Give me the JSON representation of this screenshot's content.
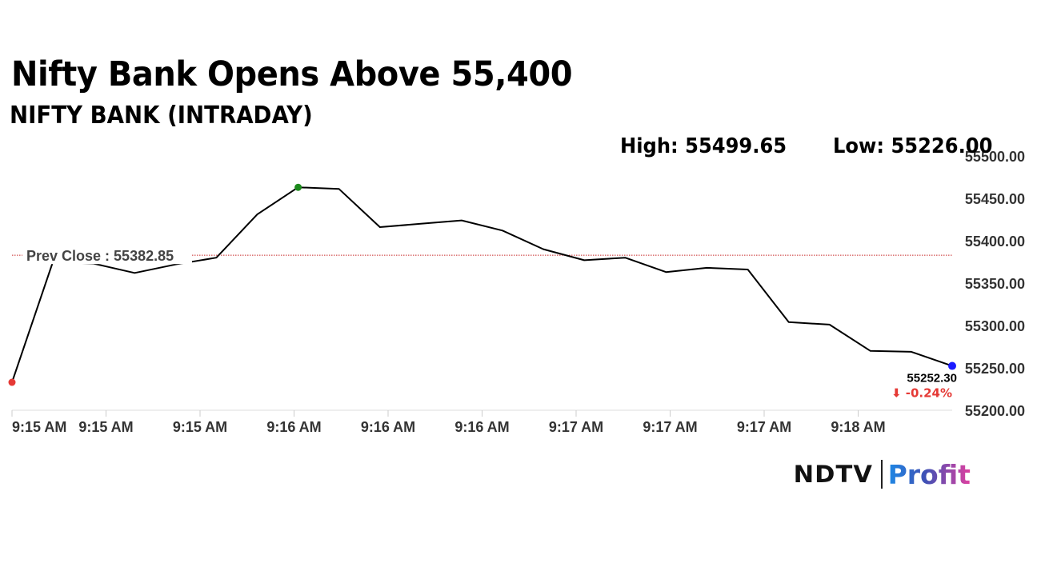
{
  "headline": "Nifty Bank Opens Above 55,400",
  "subheadline": "NIFTY BANK (INTRADAY)",
  "stats": {
    "high_label": "High: 55499.65",
    "low_label": "Low: 55226.00"
  },
  "logo": {
    "ndtv": "NDTV",
    "profit": "Profit"
  },
  "chart_data": {
    "type": "line",
    "x_ticks": [
      "9:15 AM",
      "9:15 AM",
      "9:15 AM",
      "9:16 AM",
      "9:16 AM",
      "9:16 AM",
      "9:17 AM",
      "9:17 AM",
      "9:17 AM",
      "9:18 AM"
    ],
    "ylim": [
      55200,
      55500
    ],
    "y_ticks": [
      "55200.00",
      "55250.00",
      "55300.00",
      "55350.00",
      "55400.00",
      "55450.00",
      "55500.00"
    ],
    "values": [
      55233,
      55375,
      55373,
      55362,
      55372,
      55380,
      55431,
      55463,
      55461,
      55416,
      55420,
      55424,
      55412,
      55390,
      55377,
      55380,
      55363,
      55368,
      55366,
      55304,
      55301,
      55270,
      55269,
      55252.3
    ],
    "prev_close": 55382.85,
    "prev_close_label": "Prev Close : 55382.85",
    "last_value_label": "55252.30",
    "change_label": "⬇ -0.24%",
    "colors": {
      "line": "#000000",
      "prev_close_line": "#c62828",
      "start_marker": "#e53935",
      "high_marker": "#1b8a1b",
      "last_marker": "#1a1aff",
      "change": "#e53935",
      "axis_text": "#333333",
      "grid": "#dddddd"
    }
  }
}
